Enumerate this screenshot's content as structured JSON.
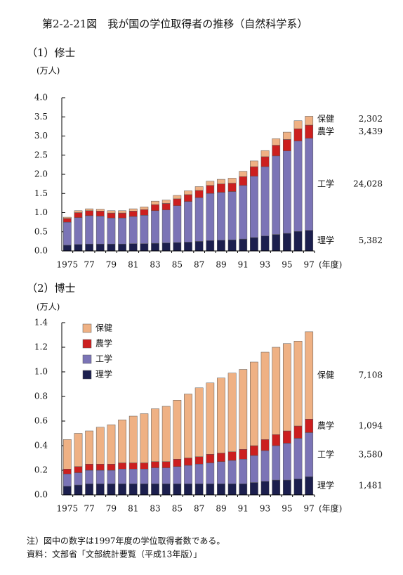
{
  "title": "第2-2-21図　我が国の学位取得者の推移（自然科学系）",
  "notes": [
    "注）図中の数字は1997年度の学位取得者数である。",
    "資料：文部省「文部統計要覧（平成13年版）」"
  ],
  "chart_data": [
    {
      "type": "bar",
      "stacked": true,
      "subtitle": "（1）修士",
      "ylabel": "(万人)",
      "xlabel": "(年度)",
      "legend": false,
      "categories": [
        "1975",
        null,
        "77",
        null,
        "79",
        null,
        "81",
        null,
        "83",
        null,
        "85",
        null,
        "87",
        null,
        "89",
        null,
        "91",
        null,
        "93",
        null,
        "95",
        null,
        "97"
      ],
      "ylim": [
        0,
        4.0
      ],
      "yticks": [
        {
          "value": 0,
          "label": "0.0"
        },
        {
          "value": 0.5,
          "label": "0.5"
        },
        {
          "value": 1,
          "label": "1.0"
        },
        {
          "value": 1.5,
          "label": "1.5"
        },
        {
          "value": 2,
          "label": "2.0"
        },
        {
          "value": 2.5,
          "label": "2.5"
        },
        {
          "value": 3,
          "label": "3.0"
        },
        {
          "value": 3.5,
          "label": "3.5"
        },
        {
          "value": 4,
          "label": "4.0"
        }
      ],
      "series": [
        {
          "name": "理学",
          "color": "#1c1f4e",
          "values": [
            0.15,
            0.17,
            0.18,
            0.18,
            0.18,
            0.18,
            0.19,
            0.19,
            0.2,
            0.21,
            0.22,
            0.23,
            0.25,
            0.27,
            0.28,
            0.29,
            0.31,
            0.35,
            0.39,
            0.43,
            0.46,
            0.51,
            0.5382
          ],
          "value_labels": [
            null,
            null,
            null,
            null,
            null,
            null,
            null,
            null,
            null,
            null,
            null,
            null,
            null,
            null,
            null,
            null,
            null,
            null,
            null,
            null,
            null,
            null,
            "5,382"
          ]
        },
        {
          "name": "工学",
          "color": "#7b74b6",
          "values": [
            0.6,
            0.7,
            0.74,
            0.73,
            0.68,
            0.68,
            0.71,
            0.74,
            0.85,
            0.86,
            0.96,
            1.06,
            1.14,
            1.23,
            1.25,
            1.26,
            1.4,
            1.6,
            1.81,
            2.05,
            2.15,
            2.36,
            2.4028
          ],
          "value_labels": [
            null,
            null,
            null,
            null,
            null,
            null,
            null,
            null,
            null,
            null,
            null,
            null,
            null,
            null,
            null,
            null,
            null,
            null,
            null,
            null,
            null,
            null,
            "24,028"
          ]
        },
        {
          "name": "農学",
          "color": "#cc1f1f",
          "values": [
            0.1,
            0.13,
            0.13,
            0.13,
            0.13,
            0.13,
            0.14,
            0.15,
            0.16,
            0.17,
            0.18,
            0.18,
            0.19,
            0.21,
            0.22,
            0.22,
            0.23,
            0.25,
            0.26,
            0.28,
            0.3,
            0.32,
            0.3439
          ],
          "value_labels": [
            null,
            null,
            null,
            null,
            null,
            null,
            null,
            null,
            null,
            null,
            null,
            null,
            null,
            null,
            null,
            null,
            null,
            null,
            null,
            null,
            null,
            null,
            "3,439"
          ]
        },
        {
          "name": "保健",
          "color": "#efb184",
          "values": [
            0.03,
            0.05,
            0.05,
            0.05,
            0.06,
            0.06,
            0.06,
            0.07,
            0.09,
            0.09,
            0.09,
            0.1,
            0.1,
            0.11,
            0.12,
            0.13,
            0.14,
            0.15,
            0.16,
            0.17,
            0.19,
            0.21,
            0.2302
          ],
          "value_labels": [
            null,
            null,
            null,
            null,
            null,
            null,
            null,
            null,
            null,
            null,
            null,
            null,
            null,
            null,
            null,
            null,
            null,
            null,
            null,
            null,
            null,
            null,
            "2,302"
          ]
        }
      ]
    },
    {
      "type": "bar",
      "stacked": true,
      "subtitle": "（2）博士",
      "ylabel": "(万人)",
      "xlabel": "(年度)",
      "legend": "upper left",
      "categories": [
        "1975",
        null,
        "77",
        null,
        "79",
        null,
        "81",
        null,
        "83",
        null,
        "85",
        null,
        "87",
        null,
        "89",
        null,
        "91",
        null,
        "93",
        null,
        "95",
        null,
        "97"
      ],
      "ylim": [
        0,
        1.4
      ],
      "yticks": [
        {
          "value": 0,
          "label": "0.0"
        },
        {
          "value": 0.2,
          "label": "0.2"
        },
        {
          "value": 0.4,
          "label": "0.4"
        },
        {
          "value": 0.6,
          "label": "0.6"
        },
        {
          "value": 0.8,
          "label": "0.8"
        },
        {
          "value": 1,
          "label": "1.0"
        },
        {
          "value": 1.2,
          "label": "1.2"
        },
        {
          "value": 1.4,
          "label": "1.4"
        }
      ],
      "series": [
        {
          "name": "理学",
          "color": "#1c1f4e",
          "values": [
            0.07,
            0.08,
            0.09,
            0.09,
            0.09,
            0.09,
            0.09,
            0.09,
            0.09,
            0.09,
            0.09,
            0.09,
            0.09,
            0.09,
            0.09,
            0.09,
            0.09,
            0.1,
            0.11,
            0.12,
            0.12,
            0.13,
            0.1481
          ],
          "value_labels": [
            null,
            null,
            null,
            null,
            null,
            null,
            null,
            null,
            null,
            null,
            null,
            null,
            null,
            null,
            null,
            null,
            null,
            null,
            null,
            null,
            null,
            null,
            "1,481"
          ]
        },
        {
          "name": "工学",
          "color": "#7b74b6",
          "values": [
            0.1,
            0.1,
            0.11,
            0.11,
            0.11,
            0.12,
            0.12,
            0.12,
            0.13,
            0.13,
            0.14,
            0.15,
            0.16,
            0.17,
            0.18,
            0.19,
            0.2,
            0.22,
            0.25,
            0.28,
            0.3,
            0.33,
            0.358
          ],
          "value_labels": [
            null,
            null,
            null,
            null,
            null,
            null,
            null,
            null,
            null,
            null,
            null,
            null,
            null,
            null,
            null,
            null,
            null,
            null,
            null,
            null,
            null,
            null,
            "3,580"
          ]
        },
        {
          "name": "農学",
          "color": "#cc1f1f",
          "values": [
            0.04,
            0.05,
            0.05,
            0.05,
            0.05,
            0.05,
            0.05,
            0.05,
            0.05,
            0.05,
            0.06,
            0.06,
            0.06,
            0.07,
            0.07,
            0.07,
            0.08,
            0.08,
            0.09,
            0.09,
            0.1,
            0.1,
            0.1094
          ],
          "value_labels": [
            null,
            null,
            null,
            null,
            null,
            null,
            null,
            null,
            null,
            null,
            null,
            null,
            null,
            null,
            null,
            null,
            null,
            null,
            null,
            null,
            null,
            null,
            "1,094"
          ]
        },
        {
          "name": "保健",
          "color": "#efb184",
          "values": [
            0.24,
            0.27,
            0.27,
            0.3,
            0.32,
            0.35,
            0.38,
            0.4,
            0.43,
            0.45,
            0.48,
            0.52,
            0.56,
            0.58,
            0.61,
            0.64,
            0.65,
            0.68,
            0.71,
            0.71,
            0.71,
            0.69,
            0.7108
          ],
          "value_labels": [
            null,
            null,
            null,
            null,
            null,
            null,
            null,
            null,
            null,
            null,
            null,
            null,
            null,
            null,
            null,
            null,
            null,
            null,
            null,
            null,
            null,
            null,
            "7,108"
          ]
        }
      ]
    }
  ]
}
